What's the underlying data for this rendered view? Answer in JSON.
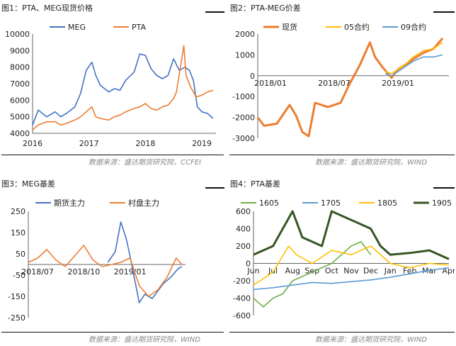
{
  "figures": {
    "fig1_title": "图1：PTA、MEG现货价格",
    "fig2_title": "图2：PTA-MEG价差",
    "fig3_title": "图3：MEG基差",
    "fig4_title": "图4：PTA基差",
    "source_top_left": "数据来源：盛达期货研究院，CCFEI",
    "source_top_right": "数据来源：盛达期货研究院，WIND",
    "source_bottom_left": "数据来源：盛达期货研究院，WIND",
    "source_bottom_right": "数据来源：盛达期货研究院，WIND"
  },
  "colors": {
    "blue": "#4472c4",
    "orange": "#ed7d31",
    "yellow": "#ffc000",
    "lightblue": "#5b9bd5",
    "green": "#70ad47",
    "darkgreen": "#375623"
  },
  "chart_data": [
    {
      "type": "line",
      "title": "图1：PTA、MEG现货价格",
      "x_ticks": [
        "2016",
        "2017",
        "2018",
        "2019"
      ],
      "x_range": [
        2016.0,
        2019.25
      ],
      "y_ticks": [
        "4000",
        "5000",
        "6000",
        "7000",
        "8000",
        "9000",
        "10000"
      ],
      "ylim": [
        4000,
        10000
      ],
      "legend": "top",
      "series": [
        {
          "name": "MEG",
          "color": "#4472c4",
          "points": [
            [
              2016.0,
              4500
            ],
            [
              2016.1,
              5400
            ],
            [
              2016.25,
              5000
            ],
            [
              2016.4,
              5300
            ],
            [
              2016.5,
              5000
            ],
            [
              2016.6,
              5200
            ],
            [
              2016.75,
              5600
            ],
            [
              2016.85,
              6400
            ],
            [
              2016.95,
              7800
            ],
            [
              2017.05,
              8300
            ],
            [
              2017.12,
              7500
            ],
            [
              2017.2,
              6900
            ],
            [
              2017.35,
              6500
            ],
            [
              2017.45,
              6700
            ],
            [
              2017.55,
              6600
            ],
            [
              2017.65,
              7200
            ],
            [
              2017.8,
              7700
            ],
            [
              2017.9,
              8800
            ],
            [
              2018.0,
              8700
            ],
            [
              2018.1,
              7900
            ],
            [
              2018.2,
              7500
            ],
            [
              2018.3,
              7300
            ],
            [
              2018.4,
              7500
            ],
            [
              2018.5,
              8500
            ],
            [
              2018.6,
              7800
            ],
            [
              2018.7,
              8000
            ],
            [
              2018.78,
              7800
            ],
            [
              2018.85,
              7200
            ],
            [
              2018.92,
              5600
            ],
            [
              2019.0,
              5300
            ],
            [
              2019.1,
              5200
            ],
            [
              2019.2,
              4900
            ]
          ]
        },
        {
          "name": "PTA",
          "color": "#ed7d31",
          "points": [
            [
              2016.0,
              4200
            ],
            [
              2016.1,
              4500
            ],
            [
              2016.25,
              4700
            ],
            [
              2016.4,
              4700
            ],
            [
              2016.5,
              4500
            ],
            [
              2016.6,
              4600
            ],
            [
              2016.75,
              4800
            ],
            [
              2016.85,
              5000
            ],
            [
              2016.95,
              5300
            ],
            [
              2017.05,
              5600
            ],
            [
              2017.12,
              5000
            ],
            [
              2017.2,
              4900
            ],
            [
              2017.35,
              4800
            ],
            [
              2017.45,
              5000
            ],
            [
              2017.55,
              5100
            ],
            [
              2017.65,
              5300
            ],
            [
              2017.8,
              5500
            ],
            [
              2017.9,
              5600
            ],
            [
              2018.0,
              5800
            ],
            [
              2018.1,
              5500
            ],
            [
              2018.2,
              5400
            ],
            [
              2018.3,
              5600
            ],
            [
              2018.4,
              5700
            ],
            [
              2018.5,
              6100
            ],
            [
              2018.55,
              6500
            ],
            [
              2018.62,
              8000
            ],
            [
              2018.68,
              9300
            ],
            [
              2018.72,
              7500
            ],
            [
              2018.8,
              6800
            ],
            [
              2018.9,
              6200
            ],
            [
              2019.0,
              6300
            ],
            [
              2019.1,
              6500
            ],
            [
              2019.2,
              6600
            ]
          ]
        }
      ]
    },
    {
      "type": "line",
      "title": "图2：PTA-MEG价差",
      "x_ticks": [
        "2018/01",
        "2018/07",
        "2019/01"
      ],
      "x_range": [
        2017.9,
        2019.4
      ],
      "y_ticks": [
        "-3000",
        "-2000",
        "-1000",
        "0",
        "1000",
        "2000"
      ],
      "ylim": [
        -3000,
        2000
      ],
      "legend": "top",
      "series": [
        {
          "name": "现货",
          "color": "#ed7d31",
          "points": [
            [
              2017.9,
              -2000
            ],
            [
              2017.95,
              -2400
            ],
            [
              2018.05,
              -2300
            ],
            [
              2018.15,
              -1400
            ],
            [
              2018.2,
              -1900
            ],
            [
              2018.25,
              -2700
            ],
            [
              2018.3,
              -2900
            ],
            [
              2018.35,
              -1300
            ],
            [
              2018.45,
              -1500
            ],
            [
              2018.55,
              -1300
            ],
            [
              2018.62,
              -400
            ],
            [
              2018.7,
              500
            ],
            [
              2018.78,
              1600
            ],
            [
              2018.82,
              900
            ],
            [
              2018.88,
              400
            ],
            [
              2018.95,
              -100
            ],
            [
              2019.0,
              300
            ],
            [
              2019.05,
              500
            ],
            [
              2019.12,
              800
            ],
            [
              2019.2,
              1100
            ],
            [
              2019.28,
              1300
            ],
            [
              2019.35,
              1800
            ]
          ]
        },
        {
          "name": "05合约",
          "color": "#ffc000",
          "points": [
            [
              2018.9,
              200
            ],
            [
              2018.95,
              100
            ],
            [
              2019.0,
              300
            ],
            [
              2019.05,
              500
            ],
            [
              2019.12,
              900
            ],
            [
              2019.2,
              1200
            ],
            [
              2019.28,
              1300
            ],
            [
              2019.35,
              1600
            ]
          ]
        },
        {
          "name": "09合约",
          "color": "#5b9bd5",
          "points": [
            [
              2018.9,
              100
            ],
            [
              2018.95,
              0
            ],
            [
              2019.0,
              200
            ],
            [
              2019.05,
              400
            ],
            [
              2019.12,
              700
            ],
            [
              2019.2,
              900
            ],
            [
              2019.28,
              900
            ],
            [
              2019.35,
              1000
            ]
          ]
        }
      ]
    },
    {
      "type": "line",
      "title": "图3：MEG基差",
      "x_ticks": [
        "2018/07",
        "2018/10",
        "2019/01"
      ],
      "x_range": [
        2018.45,
        2019.3
      ],
      "y_ticks": [
        "-250",
        "-150",
        "-50",
        "50",
        "150",
        "250"
      ],
      "ylim": [
        -250,
        250
      ],
      "legend": "top",
      "series": [
        {
          "name": "期货主力",
          "color": "#4472c4",
          "points": [
            [
              2018.88,
              10
            ],
            [
              2018.92,
              60
            ],
            [
              2018.95,
              200
            ],
            [
              2018.98,
              120
            ],
            [
              2019.0,
              40
            ],
            [
              2019.02,
              -50
            ],
            [
              2019.05,
              -180
            ],
            [
              2019.08,
              -140
            ],
            [
              2019.12,
              -160
            ],
            [
              2019.18,
              -90
            ],
            [
              2019.22,
              -60
            ],
            [
              2019.26,
              -20
            ],
            [
              2019.28,
              -10
            ]
          ]
        },
        {
          "name": "村盘主力",
          "color": "#ed7d31",
          "points": [
            [
              2018.45,
              10
            ],
            [
              2018.5,
              30
            ],
            [
              2018.55,
              70
            ],
            [
              2018.6,
              20
            ],
            [
              2018.65,
              -10
            ],
            [
              2018.7,
              40
            ],
            [
              2018.75,
              90
            ],
            [
              2018.8,
              20
            ],
            [
              2018.85,
              -10
            ],
            [
              2018.9,
              0
            ],
            [
              2018.95,
              10
            ],
            [
              2019.0,
              30
            ],
            [
              2019.05,
              -100
            ],
            [
              2019.1,
              -150
            ],
            [
              2019.15,
              -120
            ],
            [
              2019.2,
              -60
            ],
            [
              2019.25,
              30
            ],
            [
              2019.28,
              0
            ]
          ]
        }
      ]
    },
    {
      "type": "line",
      "title": "图4：PTA基差",
      "x_ticks": [
        "Jun",
        "Jul",
        "Aug",
        "Sep",
        "Oct",
        "Nov",
        "Dec",
        "Jan",
        "Feb",
        "Mar",
        "Apr"
      ],
      "ylim": [
        -600,
        600
      ],
      "y_ticks": [
        "-600",
        "-400",
        "-200",
        "0",
        "200",
        "400",
        "600"
      ],
      "legend": "top",
      "series": [
        {
          "name": "1605",
          "color": "#70ad47",
          "points": [
            [
              0,
              -400
            ],
            [
              0.5,
              -500
            ],
            [
              1,
              -400
            ],
            [
              1.5,
              -350
            ],
            [
              2,
              -200
            ],
            [
              2.5,
              -150
            ],
            [
              3,
              -100
            ],
            [
              3.5,
              -50
            ],
            [
              4,
              0
            ],
            [
              4.5,
              100
            ],
            [
              5,
              200
            ],
            [
              5.5,
              250
            ],
            [
              6,
              100
            ]
          ]
        },
        {
          "name": "1705",
          "color": "#5b9bd5",
          "points": [
            [
              0,
              -300
            ],
            [
              1,
              -280
            ],
            [
              2,
              -250
            ],
            [
              3,
              -220
            ],
            [
              4,
              -230
            ],
            [
              5,
              -210
            ],
            [
              6,
              -190
            ],
            [
              7,
              -160
            ],
            [
              8,
              -120
            ],
            [
              9,
              -80
            ],
            [
              10,
              -50
            ]
          ]
        },
        {
          "name": "1805",
          "color": "#ffc000",
          "points": [
            [
              0,
              -250
            ],
            [
              1,
              -100
            ],
            [
              1.8,
              200
            ],
            [
              2.2,
              100
            ],
            [
              3,
              0
            ],
            [
              4,
              150
            ],
            [
              5,
              100
            ],
            [
              6,
              200
            ],
            [
              7,
              0
            ],
            [
              8,
              -50
            ],
            [
              9,
              0
            ],
            [
              10,
              -20
            ]
          ]
        },
        {
          "name": "1905",
          "color": "#375623",
          "points": [
            [
              0,
              100
            ],
            [
              1,
              200
            ],
            [
              2,
              600
            ],
            [
              2.5,
              300
            ],
            [
              3.5,
              200
            ],
            [
              4,
              600
            ],
            [
              5,
              500
            ],
            [
              5.5,
              450
            ],
            [
              6,
              400
            ],
            [
              6.5,
              200
            ],
            [
              7,
              100
            ],
            [
              8,
              120
            ],
            [
              9,
              150
            ],
            [
              9.5,
              100
            ],
            [
              10,
              50
            ]
          ]
        }
      ]
    }
  ]
}
